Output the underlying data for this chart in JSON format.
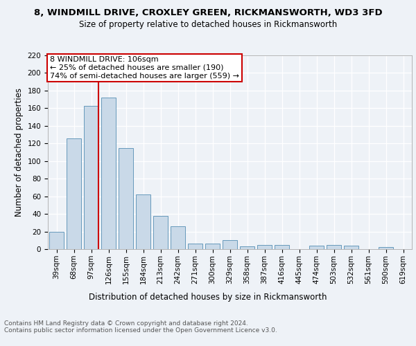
{
  "title": "8, WINDMILL DRIVE, CROXLEY GREEN, RICKMANSWORTH, WD3 3FD",
  "subtitle": "Size of property relative to detached houses in Rickmansworth",
  "xlabel": "Distribution of detached houses by size in Rickmansworth",
  "ylabel": "Number of detached properties",
  "categories": [
    "39sqm",
    "68sqm",
    "97sqm",
    "126sqm",
    "155sqm",
    "184sqm",
    "213sqm",
    "242sqm",
    "271sqm",
    "300sqm",
    "329sqm",
    "358sqm",
    "387sqm",
    "416sqm",
    "445sqm",
    "474sqm",
    "503sqm",
    "532sqm",
    "561sqm",
    "590sqm",
    "619sqm"
  ],
  "values": [
    20,
    126,
    163,
    172,
    115,
    62,
    38,
    26,
    6,
    6,
    10,
    3,
    5,
    5,
    0,
    4,
    5,
    4,
    0,
    2,
    0
  ],
  "bar_color": "#c9d9e8",
  "bar_edge_color": "#6699bb",
  "vline_color": "#cc0000",
  "annotation_box_text": "8 WINDMILL DRIVE: 106sqm\n← 25% of detached houses are smaller (190)\n74% of semi-detached houses are larger (559) →",
  "annotation_box_color": "#cc0000",
  "ylim": [
    0,
    220
  ],
  "yticks": [
    0,
    20,
    40,
    60,
    80,
    100,
    120,
    140,
    160,
    180,
    200,
    220
  ],
  "background_color": "#eef2f7",
  "grid_color": "#ffffff",
  "footer": "Contains HM Land Registry data © Crown copyright and database right 2024.\nContains public sector information licensed under the Open Government Licence v3.0.",
  "title_fontsize": 9.5,
  "subtitle_fontsize": 8.5,
  "ylabel_fontsize": 8.5,
  "xlabel_fontsize": 8.5,
  "annotation_fontsize": 8,
  "tick_fontsize": 7.5,
  "footer_fontsize": 6.5
}
